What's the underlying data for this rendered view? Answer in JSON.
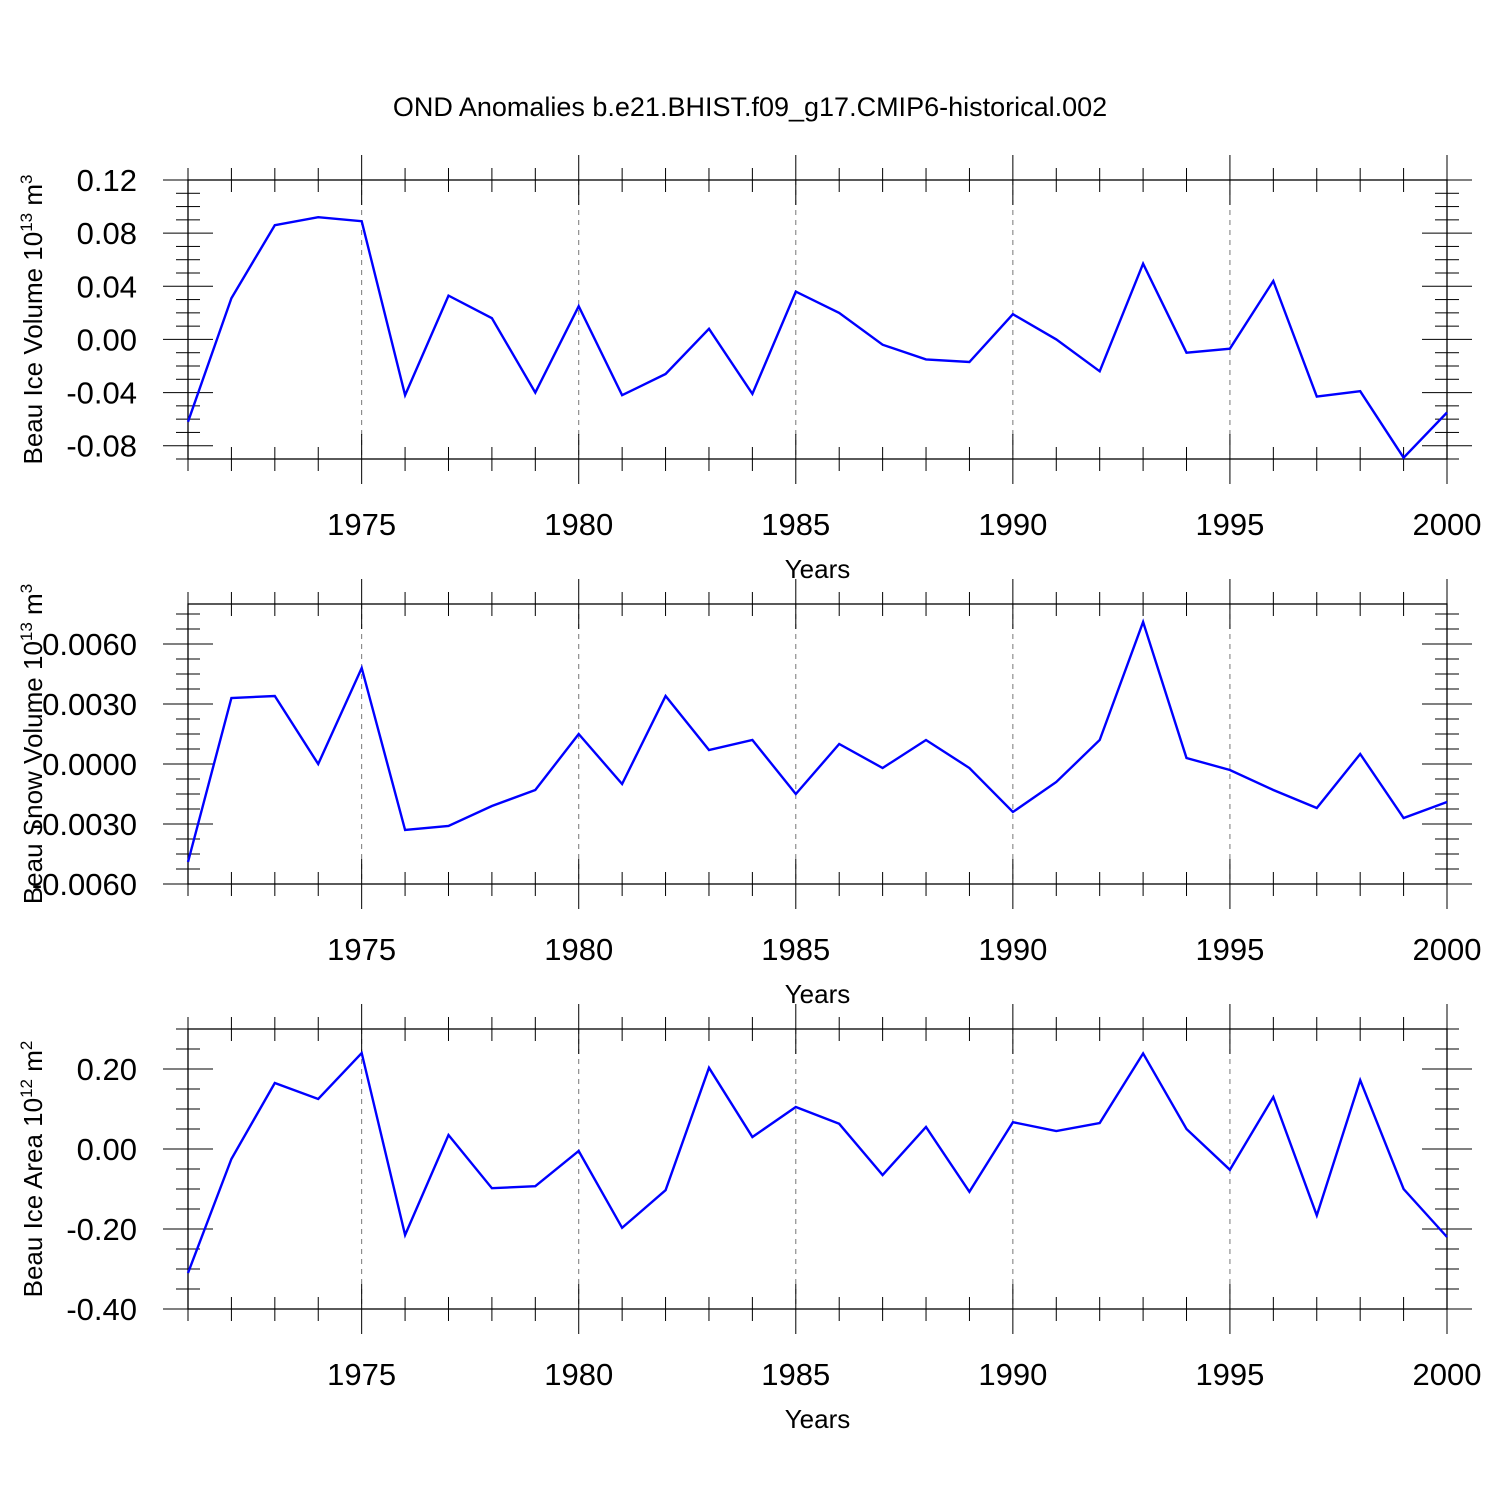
{
  "title": "OND Anomalies b.e21.BHIST.f09_g17.CMIP6-historical.002",
  "colors": {
    "series": "#0000ff",
    "grid": "#777777"
  },
  "chart_data": [
    {
      "type": "line",
      "ylabel": "Beau Ice Volume 10",
      "ylabel_sup": "13",
      "ylabel_unit": " m",
      "ylabel_unit_sup": "3",
      "xlabel": "Years",
      "xlim": [
        1971,
        2000
      ],
      "ylim": [
        -0.09,
        0.12
      ],
      "yticks": [
        -0.08,
        -0.04,
        0.0,
        0.04,
        0.08,
        0.12
      ],
      "ytick_labels": [
        "-0.08",
        "-0.04",
        "0.00",
        "0.04",
        "0.08",
        "0.12"
      ],
      "xticks": [
        1975,
        1980,
        1985,
        1990,
        1995,
        2000
      ],
      "xtick_labels": [
        "1975",
        "1980",
        "1985",
        "1990",
        "1995",
        "2000"
      ],
      "grid": "vertical dashed at major x ticks",
      "x": [
        1971,
        1972,
        1973,
        1974,
        1975,
        1976,
        1977,
        1978,
        1979,
        1980,
        1981,
        1982,
        1983,
        1984,
        1985,
        1986,
        1987,
        1988,
        1989,
        1990,
        1991,
        1992,
        1993,
        1994,
        1995,
        1996,
        1997,
        1998,
        1999,
        2000
      ],
      "values": [
        -0.062,
        0.031,
        0.086,
        0.092,
        0.089,
        -0.042,
        0.033,
        0.016,
        -0.04,
        0.025,
        -0.042,
        -0.026,
        0.008,
        -0.041,
        0.036,
        0.02,
        -0.004,
        -0.015,
        -0.017,
        0.019,
        0.0,
        -0.024,
        0.057,
        -0.01,
        -0.007,
        0.044,
        -0.043,
        -0.039,
        -0.089,
        -0.055
      ]
    },
    {
      "type": "line",
      "ylabel": "Beau Snow Volume 10",
      "ylabel_sup": "13",
      "ylabel_unit": " m",
      "ylabel_unit_sup": "3",
      "xlabel": "Years",
      "xlim": [
        1971,
        2000
      ],
      "ylim": [
        -0.006,
        0.008
      ],
      "yticks": [
        -0.006,
        -0.003,
        0.0,
        0.003,
        0.006
      ],
      "ytick_labels": [
        "-0.0060",
        "-0.0030",
        "0.0000",
        "0.0030",
        "0.0060"
      ],
      "xticks": [
        1975,
        1980,
        1985,
        1990,
        1995,
        2000
      ],
      "xtick_labels": [
        "1975",
        "1980",
        "1985",
        "1990",
        "1995",
        "2000"
      ],
      "grid": "vertical dashed at major x ticks",
      "x": [
        1971,
        1972,
        1973,
        1974,
        1975,
        1976,
        1977,
        1978,
        1979,
        1980,
        1981,
        1982,
        1983,
        1984,
        1985,
        1986,
        1987,
        1988,
        1989,
        1990,
        1991,
        1992,
        1993,
        1994,
        1995,
        1996,
        1997,
        1998,
        1999,
        2000
      ],
      "values": [
        -0.0049,
        0.0033,
        0.0034,
        0.0,
        0.0048,
        -0.0033,
        -0.0031,
        -0.0021,
        -0.0013,
        0.0015,
        -0.001,
        0.0034,
        0.0007,
        0.0012,
        -0.0015,
        0.001,
        -0.0002,
        0.0012,
        -0.0002,
        -0.0024,
        -0.0009,
        0.0012,
        0.0071,
        0.0003,
        -0.0003,
        -0.0013,
        -0.0022,
        0.0005,
        -0.0027,
        -0.0019
      ]
    },
    {
      "type": "line",
      "ylabel": "Beau Ice Area 10",
      "ylabel_sup": "12",
      "ylabel_unit": " m",
      "ylabel_unit_sup": "2",
      "xlabel": "Years",
      "xlim": [
        1971,
        2000
      ],
      "ylim": [
        -0.4,
        0.3
      ],
      "yticks": [
        -0.4,
        -0.2,
        0.0,
        0.2
      ],
      "ytick_labels": [
        "-0.40",
        "-0.20",
        "0.00",
        "0.20"
      ],
      "xticks": [
        1975,
        1980,
        1985,
        1990,
        1995,
        2000
      ],
      "xtick_labels": [
        "1975",
        "1980",
        "1985",
        "1990",
        "1995",
        "2000"
      ],
      "grid": "vertical dashed at major x ticks",
      "x": [
        1971,
        1972,
        1973,
        1974,
        1975,
        1976,
        1977,
        1978,
        1979,
        1980,
        1981,
        1982,
        1983,
        1984,
        1985,
        1986,
        1987,
        1988,
        1989,
        1990,
        1991,
        1992,
        1993,
        1994,
        1995,
        1996,
        1997,
        1998,
        1999,
        2000
      ],
      "values": [
        -0.31,
        -0.025,
        0.165,
        0.125,
        0.24,
        -0.215,
        0.035,
        -0.098,
        -0.093,
        -0.005,
        -0.197,
        -0.103,
        0.203,
        0.03,
        0.105,
        0.063,
        -0.065,
        0.055,
        -0.107,
        0.067,
        0.045,
        0.065,
        0.239,
        0.05,
        -0.052,
        0.13,
        -0.166,
        0.172,
        -0.1,
        -0.22
      ]
    }
  ]
}
